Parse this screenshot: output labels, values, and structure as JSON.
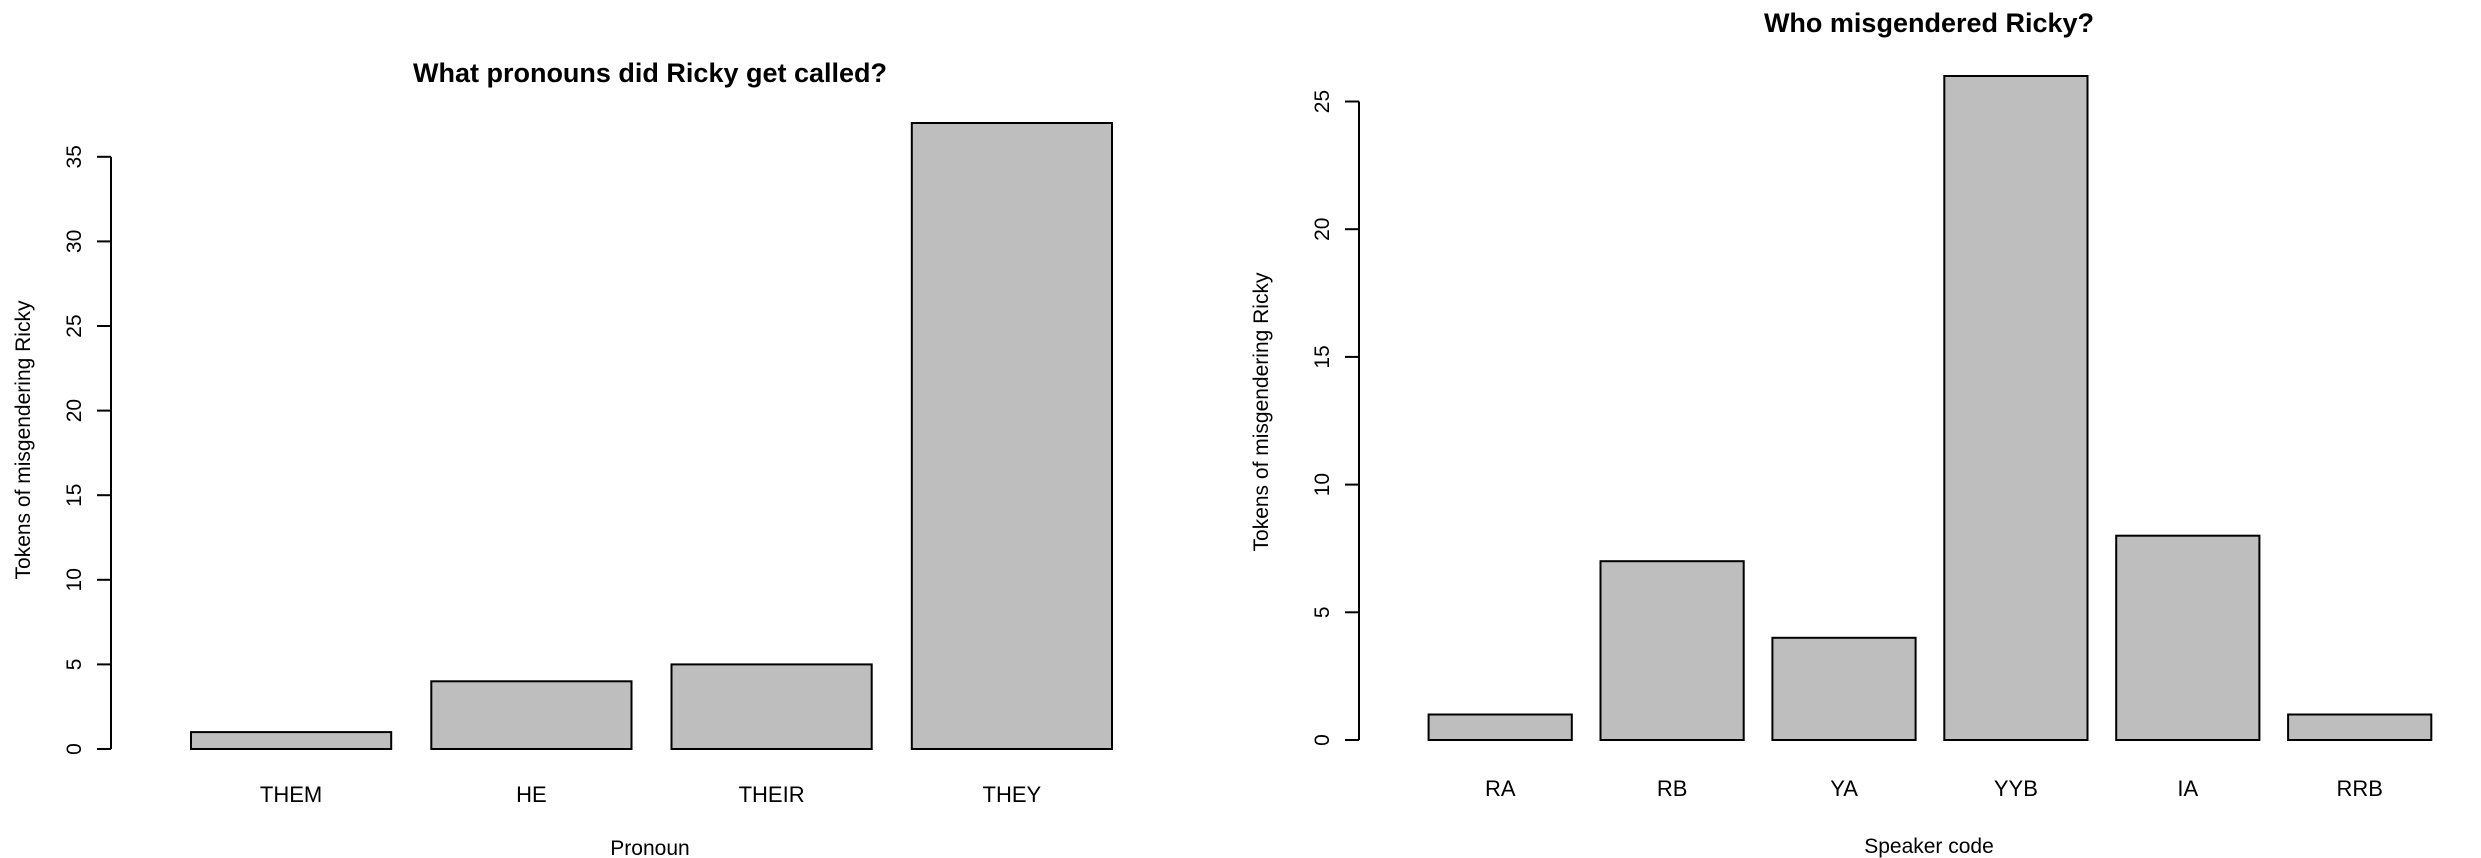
{
  "chart_data": [
    {
      "type": "bar",
      "title": "What pronouns did Ricky get called?",
      "xlabel": "Pronoun",
      "ylabel": "Tokens of misgendering Ricky",
      "categories": [
        "THEM",
        "HE",
        "THEIR",
        "THEY"
      ],
      "values": [
        1,
        4,
        5,
        37
      ],
      "yticks": [
        0,
        5,
        10,
        15,
        20,
        25,
        30,
        35
      ],
      "ylim": [
        0,
        37
      ],
      "bar_color": "#bebebe",
      "grid": false
    },
    {
      "type": "bar",
      "title": "Who misgendered Ricky?",
      "xlabel": "Speaker code",
      "ylabel": "Tokens of misgendering Ricky",
      "categories": [
        "RA",
        "RB",
        "YA",
        "YYB",
        "IA",
        "RRB"
      ],
      "values": [
        1,
        7,
        4,
        26,
        8,
        1
      ],
      "yticks": [
        0,
        5,
        10,
        15,
        20,
        25
      ],
      "ylim": [
        0,
        26
      ],
      "bar_color": "#bebebe",
      "grid": false
    }
  ]
}
